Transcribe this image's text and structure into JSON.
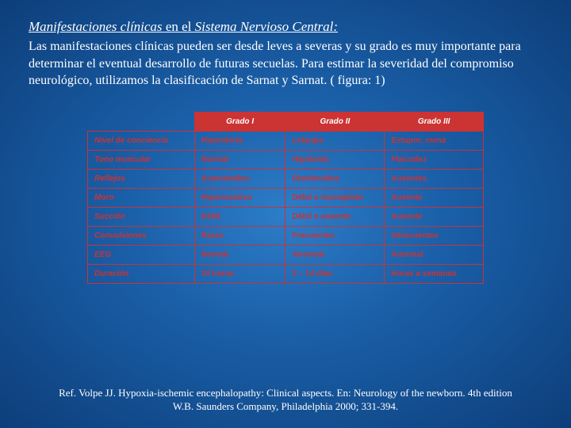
{
  "title_part1": "Manifestaciones clínicas",
  "title_part2": " en el ",
  "title_part3": "Sistema Nervioso Central:",
  "paragraph": "Las manifestaciones clínicas pueden ser desde leves a severas y su grado es muy importante para determinar el eventual desarrollo de futuras secuelas. Para estimar la severidad del compromiso neurológico, utilizamos la clasificación de Sarnat y Sarnat. ( figura: 1)",
  "table": {
    "headers": [
      "",
      "Grado I",
      "Grado II",
      "Grado III"
    ],
    "rows": [
      [
        "Nivel de conciencia",
        "Hiperalerta",
        "Letargia",
        "Estupor, coma"
      ],
      [
        "Tono muscular",
        "Normal",
        "Hipotonía",
        "Flaccidez"
      ],
      [
        "Reflejos",
        "Aumentados",
        "Disminuidos",
        "Ausentes"
      ],
      [
        "Moro",
        "Hiperreactivo",
        "Débil o incompleto",
        "Ausente"
      ],
      [
        "Succión",
        "Débil",
        "Débil o ausente",
        "Ausente"
      ],
      [
        "Convulsiones",
        "Raras",
        "Frecuentes",
        "Infrecuentes"
      ],
      [
        "EEG",
        "Normal",
        "Anormal",
        "Anormal"
      ],
      [
        "Duración",
        "24 horas",
        "2 – 14 días",
        "Horas a semanas"
      ]
    ]
  },
  "reference": "Ref. Volpe JJ. Hypoxia-ischemic encephalopathy: Clinical aspects. En: Neurology of the newborn. 4th edition W.B. Saunders Company, Philadelphia 2000; 331-394.",
  "colors": {
    "text": "#ffffff",
    "accent": "#cc3333",
    "bg_center": "#2d7dc8",
    "bg_edge": "#0d3e7a"
  }
}
